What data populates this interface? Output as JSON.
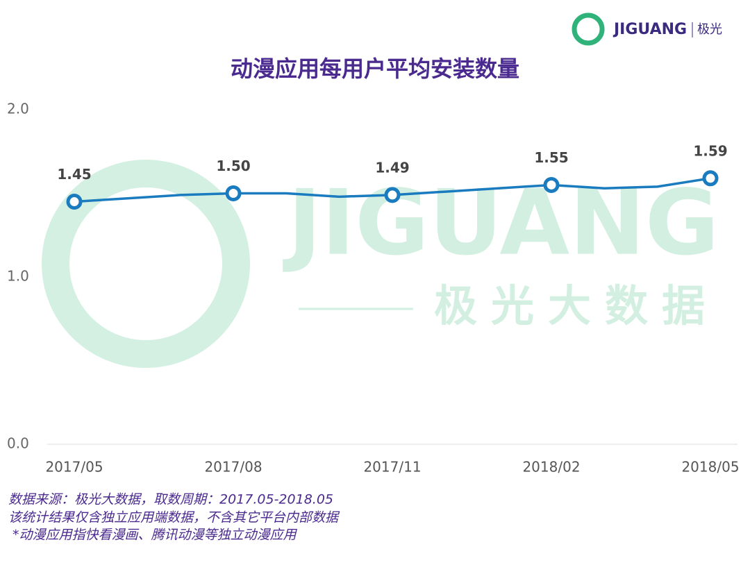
{
  "logo": {
    "brand": "JIGUANG",
    "brand_cn": "极光"
  },
  "watermark": {
    "brand": "JIGUANG",
    "brand_cn": "极光大数据"
  },
  "chart_data": {
    "type": "line",
    "title": "动漫应用每用户平均安装数量",
    "categories": [
      "2017/05",
      null,
      null,
      "2017/08",
      null,
      null,
      "2017/11",
      null,
      null,
      "2018/02",
      null,
      null,
      "2018/05"
    ],
    "series": [
      {
        "color": "#1a7bbf",
        "values": [
          1.45,
          1.47,
          1.49,
          1.5,
          1.5,
          1.48,
          1.49,
          1.51,
          1.53,
          1.55,
          1.53,
          1.54,
          1.59
        ],
        "value_labels": [
          "1.45",
          null,
          null,
          "1.50",
          null,
          null,
          "1.49",
          null,
          null,
          "1.55",
          null,
          null,
          "1.59"
        ]
      }
    ],
    "ylim": [
      0,
      2
    ],
    "yticks": [
      {
        "value": 0,
        "label": "0.0"
      },
      {
        "value": 1,
        "label": "1.0"
      },
      {
        "value": 2,
        "label": "2.0"
      }
    ]
  },
  "footnotes": [
    "数据来源：极光大数据，取数周期：2017.05-2018.05",
    "该统计结果仅含独立应用端数据，不含其它平台内部数据",
    " *动漫应用指快看漫画、腾讯动漫等独立动漫应用"
  ]
}
